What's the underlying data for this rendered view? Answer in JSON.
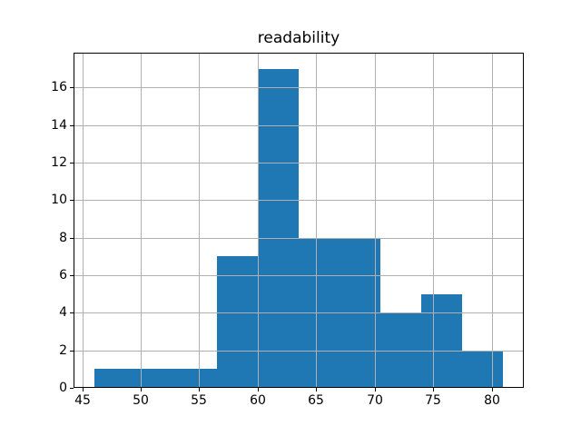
{
  "figure": {
    "title": "readability"
  },
  "chart_data": {
    "type": "bar",
    "subtype": "histogram",
    "title": "readability",
    "xlabel": "",
    "ylabel": "",
    "bin_edges": [
      46,
      49.5,
      53,
      56.5,
      60,
      63.5,
      67,
      70.5,
      74,
      77.5,
      81
    ],
    "counts": [
      1,
      1,
      1,
      7,
      17,
      8,
      8,
      4,
      5,
      2
    ],
    "xticks": [
      45,
      50,
      55,
      60,
      65,
      70,
      75,
      80
    ],
    "yticks": [
      0,
      2,
      4,
      6,
      8,
      10,
      12,
      14,
      16
    ],
    "xlim": [
      44.25,
      82.75
    ],
    "ylim": [
      0,
      17.85
    ],
    "grid": true,
    "grid_above_bars": true,
    "legend": false,
    "colors": {
      "bar": "#1f77b4",
      "grid": "#b0b0b0",
      "spine": "#000000",
      "text": "#000000",
      "background": "#ffffff"
    }
  }
}
